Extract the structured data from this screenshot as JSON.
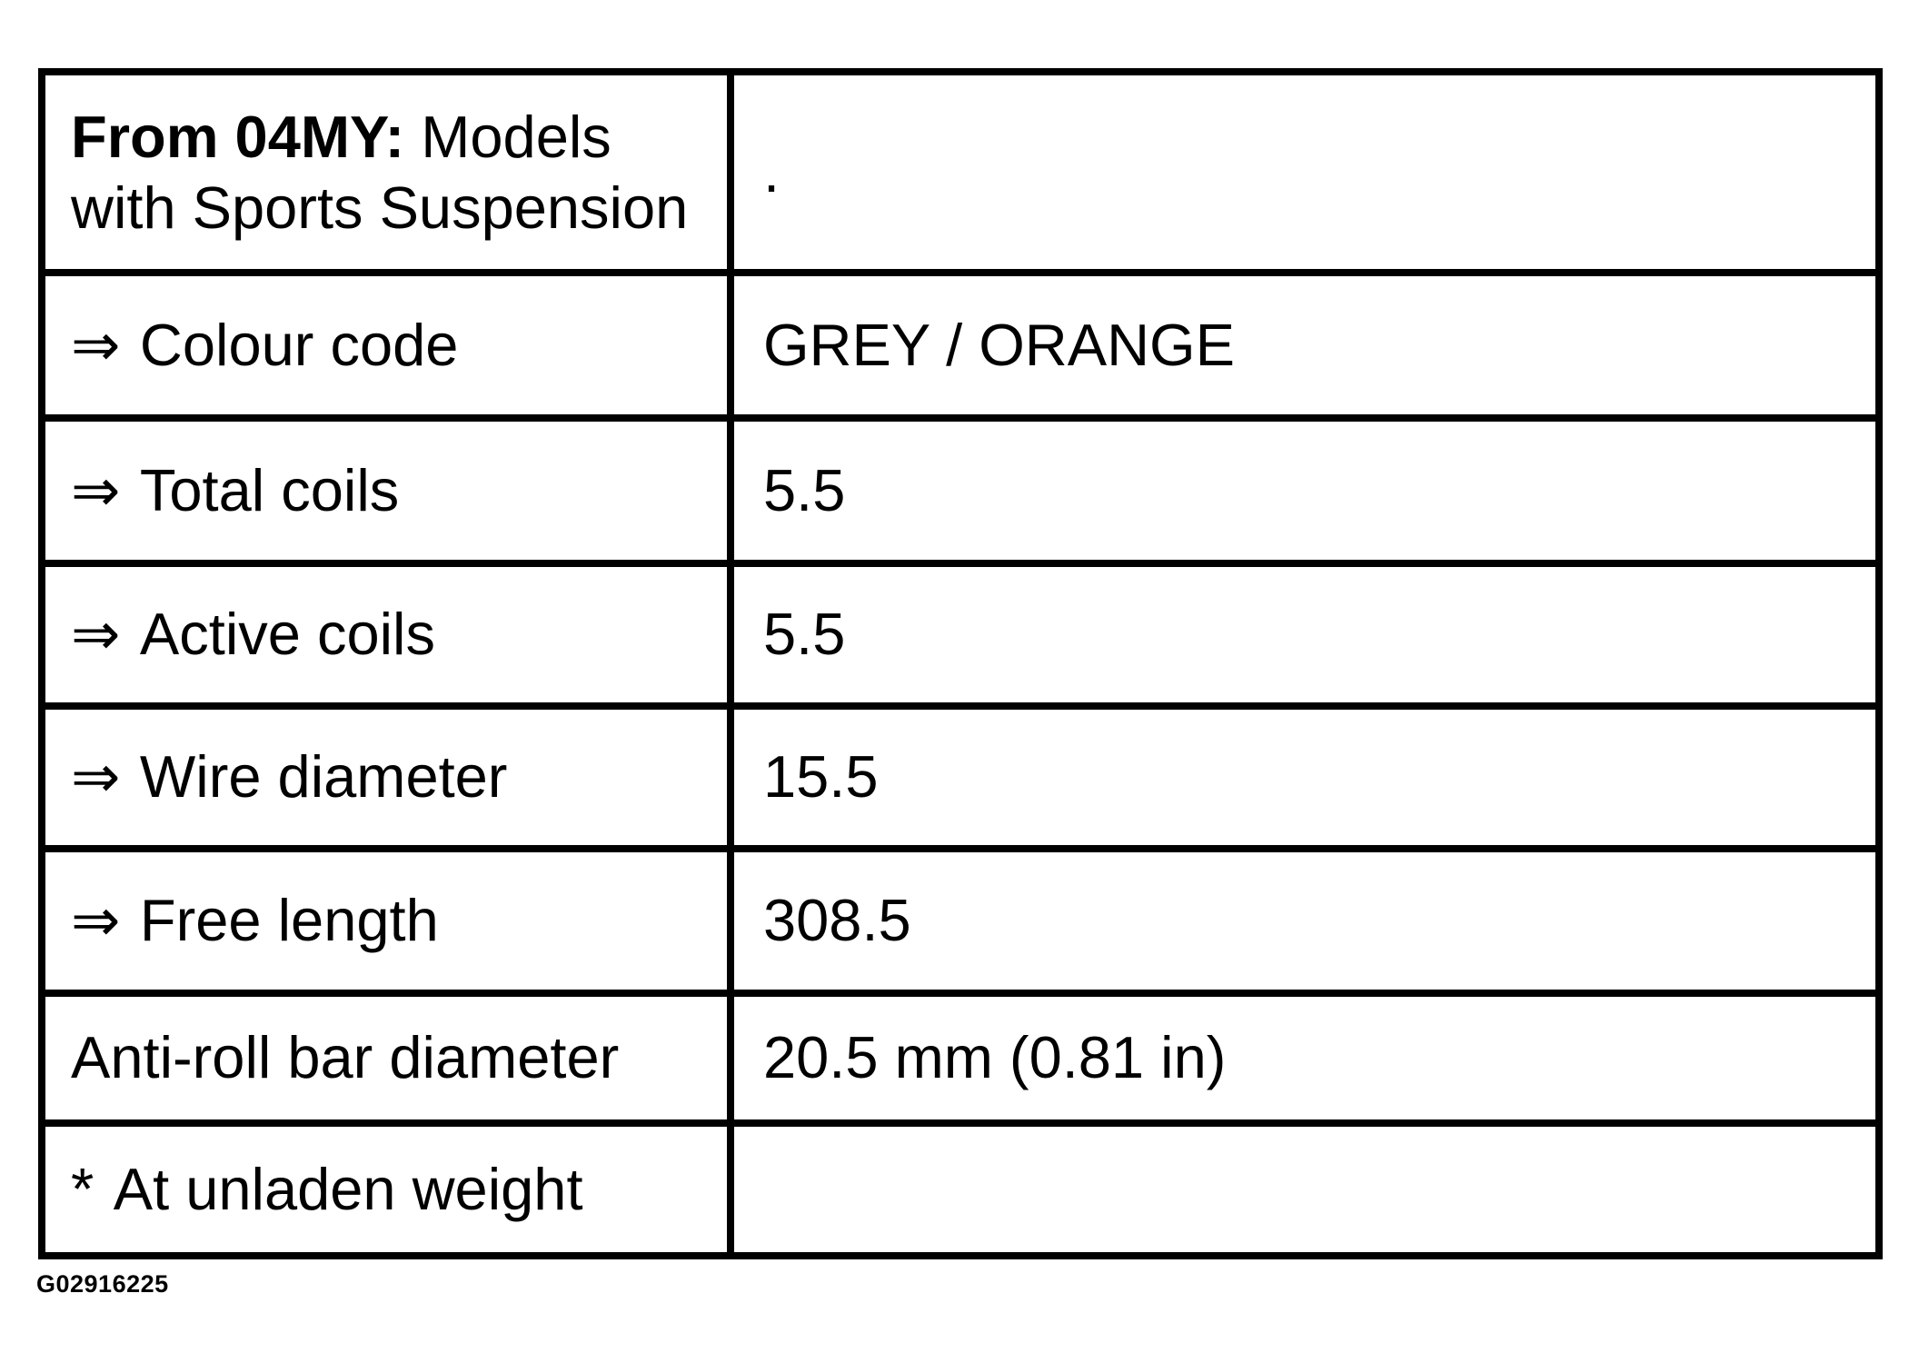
{
  "document": {
    "colors": {
      "background": "#ffffff",
      "text": "#000000",
      "border": "#000000"
    },
    "header_row": {
      "title_bold": "From 04MY:",
      "title_rest": " Models",
      "title_line2": "with Sports Suspension",
      "value": "."
    },
    "rows": [
      {
        "prefix": "⇒",
        "label": "Colour code",
        "value": "GREY / ORANGE"
      },
      {
        "prefix": "⇒",
        "label": "Total coils",
        "value": "5.5"
      },
      {
        "prefix": "⇒",
        "label": "Active coils",
        "value": "5.5"
      },
      {
        "prefix": "⇒",
        "label": "Wire diameter",
        "value": "15.5"
      },
      {
        "prefix": "⇒",
        "label": "Free length",
        "value": "308.5"
      },
      {
        "prefix": "",
        "label": "Anti-roll bar diameter",
        "value": "20.5 mm (0.81 in)"
      },
      {
        "prefix": "*",
        "label": "At unladen weight",
        "value": ""
      }
    ],
    "figure_id": "G02916225"
  }
}
